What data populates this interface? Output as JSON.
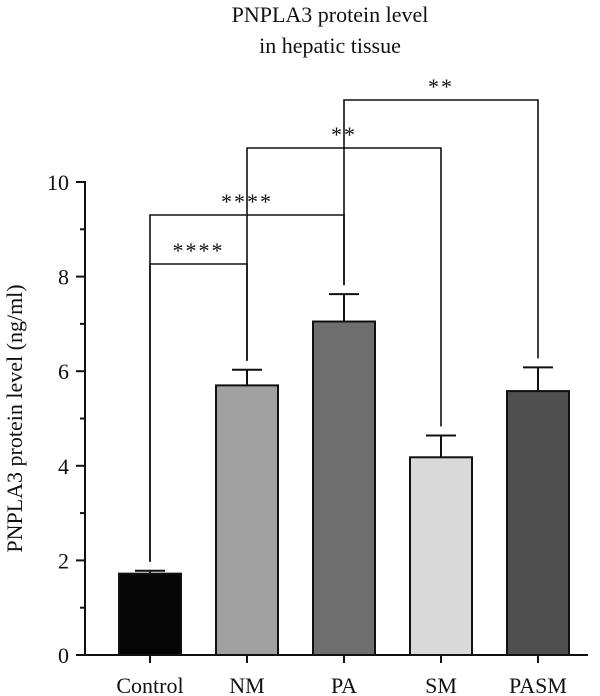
{
  "chart_data": {
    "type": "bar",
    "title": "PNPLA3 protein level\nin hepatic tissue",
    "ylabel": "PNPLA3 protein level (ng/ml)",
    "xlabel": "",
    "categories": [
      "Control",
      "NM",
      "PA",
      "SM",
      "PASM"
    ],
    "values": [
      1.72,
      5.7,
      7.05,
      4.18,
      5.58
    ],
    "errors": [
      0.06,
      0.33,
      0.58,
      0.46,
      0.5
    ],
    "bar_colors": [
      "#050505",
      "#a1a1a1",
      "#6e6e6e",
      "#d9d9d9",
      "#4f4f4f"
    ],
    "ylim": [
      0,
      10
    ],
    "yticks": [
      0,
      2,
      4,
      6,
      8,
      10
    ],
    "grid": false,
    "significance": [
      {
        "from": "Control",
        "to": "NM",
        "label": "****"
      },
      {
        "from": "Control",
        "to": "PA",
        "label": "****"
      },
      {
        "from": "NM",
        "to": "SM",
        "label": "**"
      },
      {
        "from": "PA",
        "to": "PASM",
        "label": "**"
      }
    ]
  }
}
